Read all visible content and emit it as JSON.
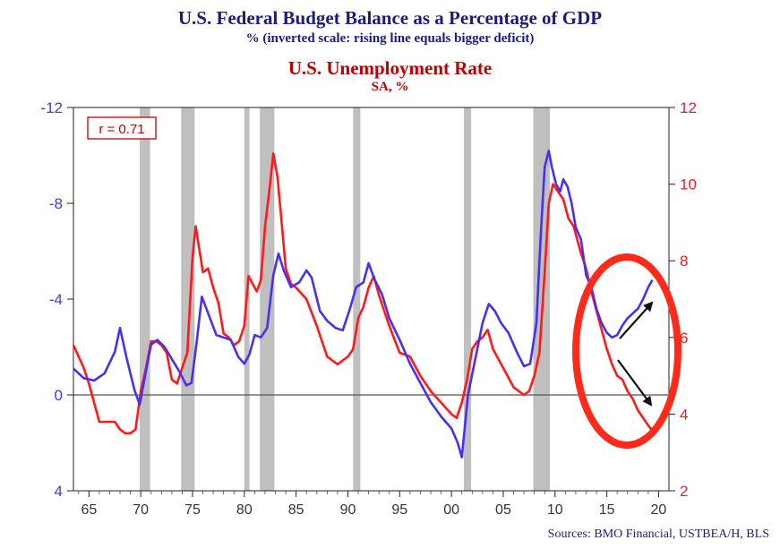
{
  "titles": {
    "main": "U.S. Federal Budget Balance as a Percentage of GDP",
    "main_sub": "% (inverted scale: rising line equals bigger deficit)",
    "second": "U.S. Unemployment Rate",
    "second_sub": "SA, %"
  },
  "source": "Sources: BMO Financial, USTBEA/H, BLS",
  "colors": {
    "budget": "#4a2ff0",
    "unemployment": "#ff1a1a",
    "recession": "#bfbfbf",
    "circle": "#ff2a1a",
    "left_axis": "#3c3cd6",
    "right_axis": "#e0202a"
  },
  "chart_data": {
    "type": "line",
    "annotation": "r = 0.71",
    "x_ticks": [
      "65",
      "70",
      "75",
      "80",
      "85",
      "90",
      "95",
      "00",
      "05",
      "10",
      "15",
      "20"
    ],
    "xlim": [
      1963.5,
      2021
    ],
    "left_axis": {
      "ticks": [
        "-12",
        "-8",
        "-4",
        "0",
        "4"
      ],
      "ylim": [
        -12,
        4
      ],
      "inverted": true
    },
    "right_axis": {
      "ticks": [
        "12",
        "10",
        "8",
        "6",
        "4",
        "2"
      ],
      "ylim": [
        2,
        12
      ]
    },
    "recessions": [
      [
        1969.9,
        1970.9
      ],
      [
        1973.9,
        1975.2
      ],
      [
        1980.0,
        1980.5
      ],
      [
        1981.5,
        1982.9
      ],
      [
        1990.5,
        1991.2
      ],
      [
        2001.2,
        2001.9
      ],
      [
        2007.9,
        2009.5
      ]
    ],
    "series": [
      {
        "name": "budget",
        "axis": "left",
        "x": [
          1963.5,
          1964.5,
          1965.5,
          1966.5,
          1967.5,
          1968.0,
          1968.6,
          1969.4,
          1969.9,
          1970.5,
          1971.0,
          1971.6,
          1972.3,
          1973.0,
          1973.7,
          1974.4,
          1974.9,
          1975.4,
          1975.9,
          1976.6,
          1977.3,
          1978.0,
          1978.7,
          1979.4,
          1980.0,
          1980.5,
          1981.0,
          1981.6,
          1982.2,
          1982.8,
          1983.3,
          1983.8,
          1984.5,
          1985.3,
          1986.0,
          1986.5,
          1987.3,
          1988.0,
          1988.8,
          1989.5,
          1990.2,
          1990.8,
          1991.5,
          1992.0,
          1992.6,
          1993.3,
          1994.0,
          1995.0,
          1996.0,
          1997.0,
          1998.0,
          1999.0,
          2000.0,
          2000.6,
          2001.0,
          2001.6,
          2002.3,
          2003.0,
          2003.6,
          2004.2,
          2004.8,
          2005.5,
          2006.3,
          2007.0,
          2007.6,
          2008.2,
          2008.6,
          2009.0,
          2009.4,
          2009.7,
          2010.1,
          2010.5,
          2010.8,
          2011.2,
          2011.6,
          2012.0,
          2012.5,
          2013.0,
          2013.5,
          2014.0,
          2014.5,
          2015.0,
          2015.5,
          2016.0,
          2016.5,
          2017.0,
          2017.5,
          2018.0,
          2018.5,
          2019.0,
          2019.4
        ],
        "values": [
          -1.1,
          -0.7,
          -0.6,
          -0.9,
          -1.8,
          -2.8,
          -1.6,
          -0.2,
          0.4,
          -1.0,
          -2.1,
          -2.3,
          -2.0,
          -1.5,
          -1.0,
          -0.4,
          -0.5,
          -2.2,
          -4.1,
          -3.3,
          -2.5,
          -2.4,
          -2.3,
          -1.6,
          -1.3,
          -1.7,
          -2.5,
          -2.4,
          -2.8,
          -5.0,
          -5.9,
          -5.2,
          -4.5,
          -4.7,
          -5.2,
          -4.9,
          -3.5,
          -3.1,
          -2.8,
          -2.7,
          -3.6,
          -4.5,
          -4.7,
          -5.5,
          -4.8,
          -4.2,
          -3.2,
          -2.3,
          -1.3,
          -0.5,
          0.3,
          0.9,
          1.4,
          2.0,
          2.6,
          0.0,
          -1.5,
          -3.0,
          -3.8,
          -3.5,
          -3.0,
          -2.6,
          -1.8,
          -1.2,
          -1.3,
          -3.0,
          -6.5,
          -9.5,
          -10.2,
          -9.5,
          -8.8,
          -8.5,
          -9.0,
          -8.7,
          -8.0,
          -7.0,
          -6.5,
          -5.0,
          -4.5,
          -3.6,
          -3.0,
          -2.6,
          -2.4,
          -2.5,
          -2.9,
          -3.2,
          -3.4,
          -3.6,
          -4.0,
          -4.5,
          -4.8
        ]
      },
      {
        "name": "unemployment",
        "axis": "right",
        "x": [
          1963.5,
          1964.0,
          1964.5,
          1965.0,
          1965.5,
          1966.0,
          1966.5,
          1967.0,
          1967.5,
          1968.0,
          1968.5,
          1969.0,
          1969.5,
          1970.0,
          1970.5,
          1971.0,
          1971.5,
          1972.0,
          1972.5,
          1973.0,
          1973.5,
          1974.0,
          1974.5,
          1975.0,
          1975.3,
          1975.6,
          1976.0,
          1976.5,
          1977.0,
          1977.5,
          1978.0,
          1978.5,
          1979.0,
          1979.5,
          1980.0,
          1980.4,
          1980.8,
          1981.2,
          1981.6,
          1982.0,
          1982.4,
          1982.8,
          1983.2,
          1983.6,
          1984.0,
          1984.5,
          1985.0,
          1986.0,
          1987.0,
          1988.0,
          1989.0,
          1990.0,
          1990.5,
          1991.0,
          1991.5,
          1992.0,
          1992.5,
          1993.0,
          1994.0,
          1995.0,
          1996.0,
          1997.0,
          1998.0,
          1999.0,
          2000.0,
          2000.5,
          2001.0,
          2001.5,
          2002.0,
          2002.5,
          2003.0,
          2003.5,
          2004.0,
          2005.0,
          2006.0,
          2007.0,
          2007.5,
          2008.0,
          2008.5,
          2009.0,
          2009.4,
          2009.8,
          2010.3,
          2010.8,
          2011.3,
          2011.8,
          2012.5,
          2013.0,
          2013.5,
          2014.0,
          2014.5,
          2015.0,
          2015.5,
          2016.0,
          2016.5,
          2017.0,
          2017.5,
          2018.0,
          2018.5,
          2019.0,
          2019.3
        ],
        "values": [
          5.8,
          5.5,
          5.2,
          4.8,
          4.3,
          3.8,
          3.8,
          3.8,
          3.8,
          3.6,
          3.5,
          3.5,
          3.6,
          4.6,
          5.2,
          5.9,
          5.9,
          5.8,
          5.6,
          4.9,
          4.8,
          5.2,
          5.6,
          8.1,
          8.9,
          8.4,
          7.7,
          7.8,
          7.3,
          6.9,
          6.1,
          6.0,
          5.8,
          5.9,
          6.3,
          7.6,
          7.4,
          7.2,
          7.5,
          8.9,
          9.8,
          10.8,
          10.2,
          9.0,
          7.8,
          7.4,
          7.3,
          7.0,
          6.3,
          5.5,
          5.3,
          5.5,
          5.7,
          6.5,
          6.8,
          7.3,
          7.6,
          7.1,
          6.3,
          5.6,
          5.5,
          5.0,
          4.6,
          4.3,
          4.0,
          3.9,
          4.3,
          4.9,
          5.7,
          5.9,
          6.0,
          6.2,
          5.7,
          5.2,
          4.7,
          4.5,
          4.6,
          5.0,
          5.6,
          7.7,
          9.5,
          10.0,
          9.8,
          9.6,
          9.1,
          8.9,
          8.2,
          7.8,
          7.2,
          6.7,
          6.2,
          5.7,
          5.3,
          5.0,
          4.9,
          4.6,
          4.4,
          4.1,
          3.9,
          3.7,
          3.6
        ]
      }
    ]
  }
}
